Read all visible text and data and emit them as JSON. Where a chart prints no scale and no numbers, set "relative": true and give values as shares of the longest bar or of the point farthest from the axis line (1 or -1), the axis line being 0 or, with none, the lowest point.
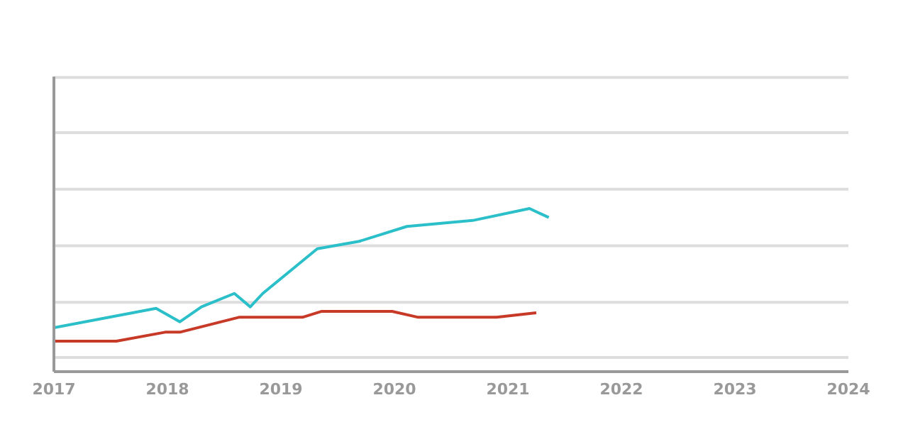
{
  "chart_data": {
    "type": "line",
    "relative": true,
    "ref_lines": [
      {
        "axis": "y",
        "value": 0,
        "color": "#dddddd"
      },
      {
        "axis": "y",
        "value": 0.37,
        "color": "#dddddd"
      },
      {
        "axis": "y",
        "value": 0.75,
        "color": "#dddddd"
      },
      {
        "axis": "y",
        "value": 1.13,
        "color": "#dddddd"
      },
      {
        "axis": "y",
        "value": 1.51,
        "color": "#dddddd"
      },
      {
        "axis": "y",
        "value": 1.88,
        "color": "#dddddd"
      }
    ],
    "marker": "none",
    "line_style": "solid",
    "xlim": [
      2017,
      2024
    ],
    "xticks": [
      2017,
      2018,
      2019,
      2020,
      2021,
      2022,
      2023,
      2024
    ],
    "series": [
      {
        "color": "#2bbfc9",
        "x": [
          2017.0,
          2017.9,
          2018.11,
          2018.3,
          2018.59,
          2018.73,
          2018.84,
          2019.32,
          2019.69,
          2020.11,
          2020.69,
          2021.19,
          2021.36
        ],
        "values": [
          0.2,
          0.33,
          0.24,
          0.34,
          0.43,
          0.34,
          0.43,
          0.73,
          0.78,
          0.88,
          0.92,
          1.0,
          0.94
        ]
      },
      {
        "color": "#c83a28",
        "x": [
          2017.0,
          2017.55,
          2017.98,
          2018.11,
          2018.63,
          2019.19,
          2019.36,
          2019.98,
          2020.21,
          2020.9,
          2021.25
        ],
        "values": [
          0.11,
          0.11,
          0.17,
          0.17,
          0.27,
          0.27,
          0.31,
          0.31,
          0.27,
          0.27,
          0.3
        ]
      }
    ]
  }
}
